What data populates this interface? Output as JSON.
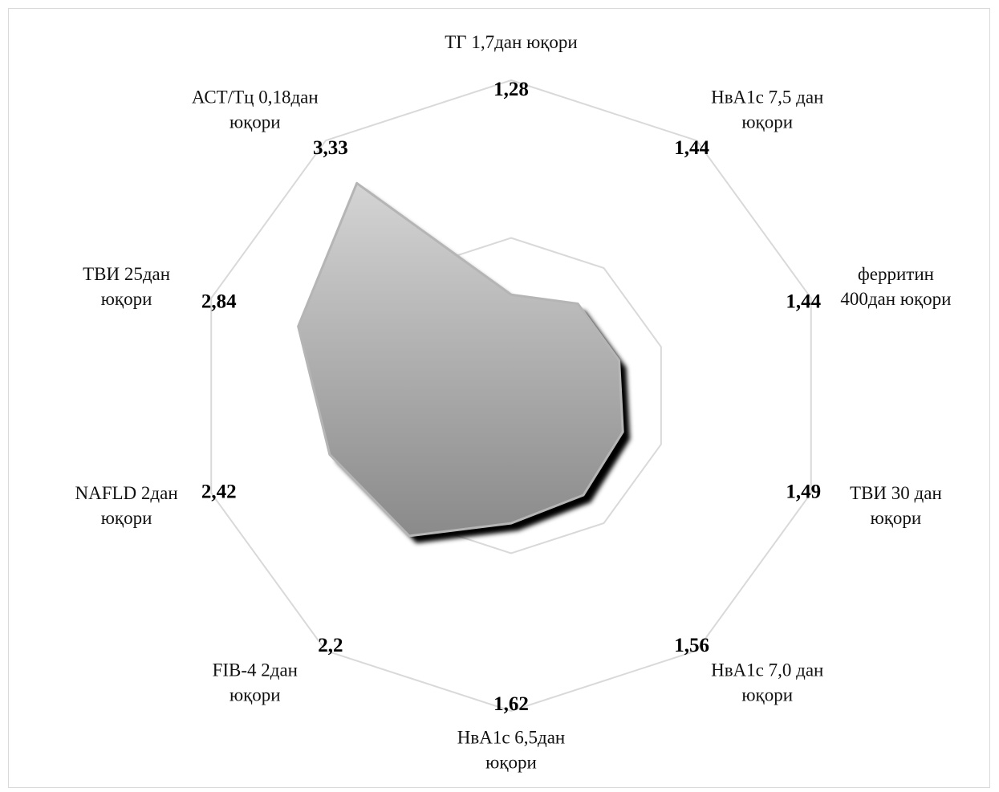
{
  "chart_data": {
    "type": "radar",
    "title": "",
    "categories": [
      "ТГ 1,7дан юқори",
      "НвА1с  7,5 дан юқори",
      "ферритин 400дан юқори",
      "ТВИ 30 дан юқори",
      "НвА1с 7,0 дан юқори",
      "НвА1с 6,5дан юқори",
      "FIB-4 2дан юқори",
      "NAFLD  2дан юқори",
      "ТВИ  25дан юқори",
      "АСТ/Тц  0,18дан юқори"
    ],
    "category_lines": [
      [
        "ТГ 1,7дан юқори"
      ],
      [
        "НвА1с  7,5 дан",
        "юқори"
      ],
      [
        "ферритин",
        "400дан юқори"
      ],
      [
        "ТВИ 30 дан",
        "юқори"
      ],
      [
        "НвА1с 7,0 дан",
        "юқори"
      ],
      [
        "НвА1с 6,5дан",
        "юқори"
      ],
      [
        "FIB-4 2дан",
        "юқори"
      ],
      [
        "NAFLD  2дан",
        "юқори"
      ],
      [
        "ТВИ  25дан",
        "юқори"
      ],
      [
        "АСТ/Тц  0,18дан",
        "юқори"
      ]
    ],
    "values": [
      1.28,
      1.44,
      1.44,
      1.49,
      1.56,
      1.62,
      2.2,
      2.42,
      2.84,
      3.33
    ],
    "value_labels": [
      "1,28",
      "1,44",
      "1,44",
      "1,49",
      "1,56",
      "1,62",
      "2,2",
      "2,42",
      "2,84",
      "3,33"
    ],
    "gridlines": [
      2,
      4
    ],
    "axis_max": 4,
    "grid": true,
    "legend": "none",
    "colors": {
      "fill_light": "#d4d4d4",
      "fill_dark": "#8a8a8a",
      "grid": "#d9d9d9",
      "shadow": "#000000"
    }
  }
}
